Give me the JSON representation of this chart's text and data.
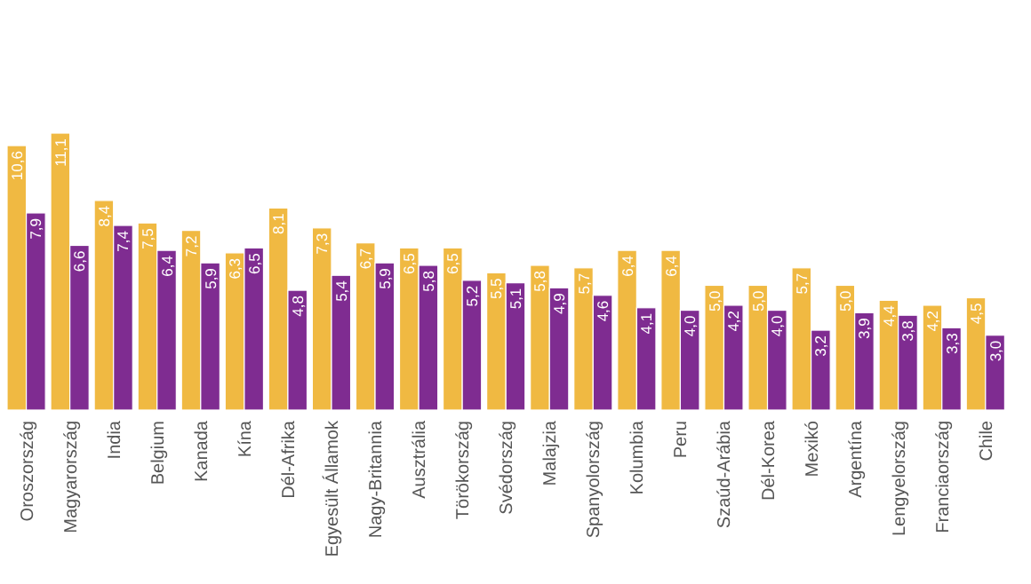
{
  "chart_data": {
    "type": "bar",
    "categories": [
      "Oroszország",
      "Magyarország",
      "India",
      "Belgium",
      "Kanada",
      "Kína",
      "Dél-Afrika",
      "Egyesült Államok",
      "Nagy-Britannia",
      "Ausztrália",
      "Törökország",
      "Svédország",
      "Malajzia",
      "Spanyolország",
      "Kolumbia",
      "Peru",
      "Szaúd-Arábia",
      "Dél-Korea",
      "Mexikó",
      "Argentína",
      "Lengyelország",
      "Franciaország",
      "Chile"
    ],
    "series": [
      {
        "color": "#f0b942",
        "values": [
          10.6,
          11.1,
          8.4,
          7.5,
          7.2,
          6.3,
          8.1,
          7.3,
          6.7,
          6.5,
          6.5,
          5.5,
          5.8,
          5.7,
          6.4,
          6.4,
          5.0,
          5.0,
          5.7,
          5.0,
          4.4,
          4.2,
          4.5
        ],
        "value_labels": [
          "10,6",
          "11,1",
          "8,4",
          "7,5",
          "7,2",
          "6,3",
          "8,1",
          "7,3",
          "6,7",
          "6,5",
          "6,5",
          "5,5",
          "5,8",
          "5,7",
          "6,4",
          "6,4",
          "5,0",
          "5,0",
          "5,7",
          "5,0",
          "4,4",
          "4,2",
          "4,5"
        ]
      },
      {
        "color": "#7f2c91",
        "values": [
          7.9,
          6.6,
          7.4,
          6.4,
          5.9,
          6.5,
          4.8,
          5.4,
          5.9,
          5.8,
          5.2,
          5.1,
          4.9,
          4.6,
          4.1,
          4.0,
          4.2,
          4.0,
          3.2,
          3.9,
          3.8,
          3.3,
          3.0
        ],
        "value_labels": [
          "7,9",
          "6,6",
          "7,4",
          "6,4",
          "5,9",
          "6,5",
          "4,8",
          "5,4",
          "5,9",
          "5,8",
          "5,2",
          "5,1",
          "4,9",
          "4,6",
          "4,1",
          "4,0",
          "4,2",
          "4,0",
          "3,2",
          "3,9",
          "3,8",
          "3,3",
          "3,0"
        ]
      }
    ],
    "tick_labels": "x"
  }
}
